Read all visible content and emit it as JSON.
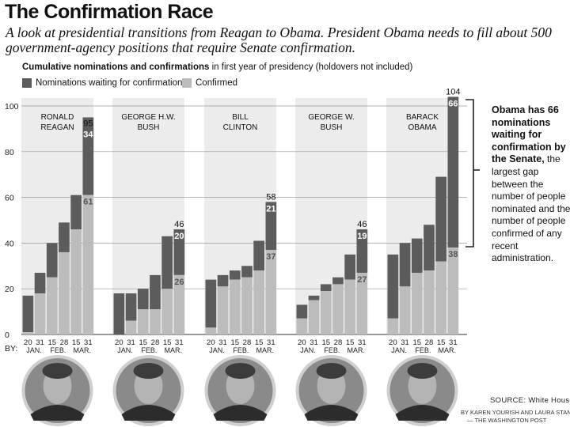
{
  "header": {
    "title": "The Confirmation Race",
    "subtitle": "A look at presidential transitions from Reagan to Obama. President Obama needs to fill about 500 government-agency positions that require Senate confirmation.",
    "chart_head_bold": "Cumulative nominations and confirmations",
    "chart_head_rest": "in first year of presidency  (holdovers not included)"
  },
  "legend": {
    "waiting_label": "Nominations waiting for confirmation",
    "confirmed_label": "Confirmed"
  },
  "colors": {
    "waiting": "#5c5c5c",
    "confirmed": "#bcbcbc",
    "panel": "#ececec",
    "grid": "#9a9a9a"
  },
  "annotation": {
    "bold": "Obama has 66 nominations waiting for confirmation by the Senate,",
    "rest": "the largest gap between the number of people nominated and the number of people confirmed of any recent administration."
  },
  "by_label": "BY:",
  "footer": {
    "source": "SOURCE: White House",
    "byline_1": "BY KAREN YOURISH AND LAURA STANTON",
    "byline_2": "— THE WASHINGTON POST"
  },
  "chart_data": {
    "type": "bar",
    "stacked": true,
    "title": "Cumulative nominations and confirmations in first year of presidency",
    "ylim": [
      0,
      104
    ],
    "yticks": [
      0,
      20,
      40,
      60,
      80,
      100
    ],
    "day_labels": [
      "20",
      "31",
      "15",
      "28",
      "15",
      "31"
    ],
    "month_labels": [
      "JAN.",
      "FEB.",
      "MAR."
    ],
    "panels": [
      {
        "name_line1": "RONALD",
        "name_line2": "REAGAN",
        "total": [
          17,
          27,
          40,
          49,
          61,
          95
        ],
        "confirmed": [
          1,
          18,
          25,
          36,
          46,
          61
        ],
        "labels": {
          "total": "95",
          "waiting": "34",
          "confirmed": "61"
        },
        "total_label_inside": true
      },
      {
        "name_line1": "GEORGE H.W.",
        "name_line2": "BUSH",
        "total": [
          18,
          18,
          20,
          26,
          43,
          46
        ],
        "confirmed": [
          0,
          6,
          11,
          11,
          20,
          26
        ],
        "labels": {
          "total": "46",
          "waiting": "20",
          "confirmed": "26"
        },
        "total_label_inside": false
      },
      {
        "name_line1": "BILL",
        "name_line2": "CLINTON",
        "total": [
          24,
          26,
          28,
          30,
          41,
          58
        ],
        "confirmed": [
          3,
          21,
          24,
          25,
          28,
          37
        ],
        "labels": {
          "total": "58",
          "waiting": "21",
          "confirmed": "37"
        },
        "total_label_inside": false
      },
      {
        "name_line1": "GEORGE W.",
        "name_line2": "BUSH",
        "total": [
          13,
          17,
          22,
          25,
          35,
          46
        ],
        "confirmed": [
          7,
          15,
          19,
          22,
          24,
          27
        ],
        "labels": {
          "total": "46",
          "waiting": "19",
          "confirmed": "27"
        },
        "total_label_inside": false
      },
      {
        "name_line1": "BARACK",
        "name_line2": "OBAMA",
        "total": [
          35,
          40,
          42,
          48,
          69,
          104
        ],
        "confirmed": [
          7,
          21,
          27,
          28,
          32,
          38
        ],
        "labels": {
          "total": "104",
          "waiting": "66",
          "confirmed": "38"
        },
        "total_label_inside": false
      }
    ]
  }
}
